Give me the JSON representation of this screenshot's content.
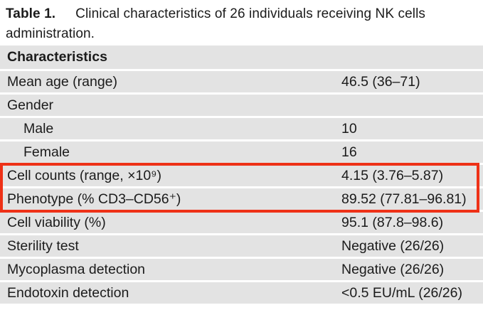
{
  "title": {
    "label": "Table 1.",
    "text": "Clinical characteristics of 26 individuals receiving NK cells administration."
  },
  "table": {
    "header": "Characteristics",
    "rows": [
      {
        "label": "Mean age (range)",
        "value": "46.5 (36–71)"
      },
      {
        "label": "Gender",
        "value": ""
      },
      {
        "label": "Male",
        "value": "10"
      },
      {
        "label": "Female",
        "value": "16"
      },
      {
        "label": "Cell counts (range, ×10⁹)",
        "value": "4.15 (3.76–5.87)"
      },
      {
        "label": "Phenotype (% CD3–CD56⁺)",
        "value": "89.52 (77.81–96.81)"
      },
      {
        "label": "Cell viability (%)",
        "value": "95.1 (87.8–98.6)"
      },
      {
        "label": "Sterility test",
        "value": "Negative (26/26)"
      },
      {
        "label": "Mycoplasma detection",
        "value": "Negative (26/26)"
      },
      {
        "label": "Endotoxin detection",
        "value": "<0.5 EU/mL (26/26)"
      }
    ]
  },
  "highlight": {
    "color": "#ee3117",
    "highlighted_rows": [
      "Cell counts (range, ×10⁹)",
      "Phenotype (% CD3–CD56⁺)"
    ]
  }
}
